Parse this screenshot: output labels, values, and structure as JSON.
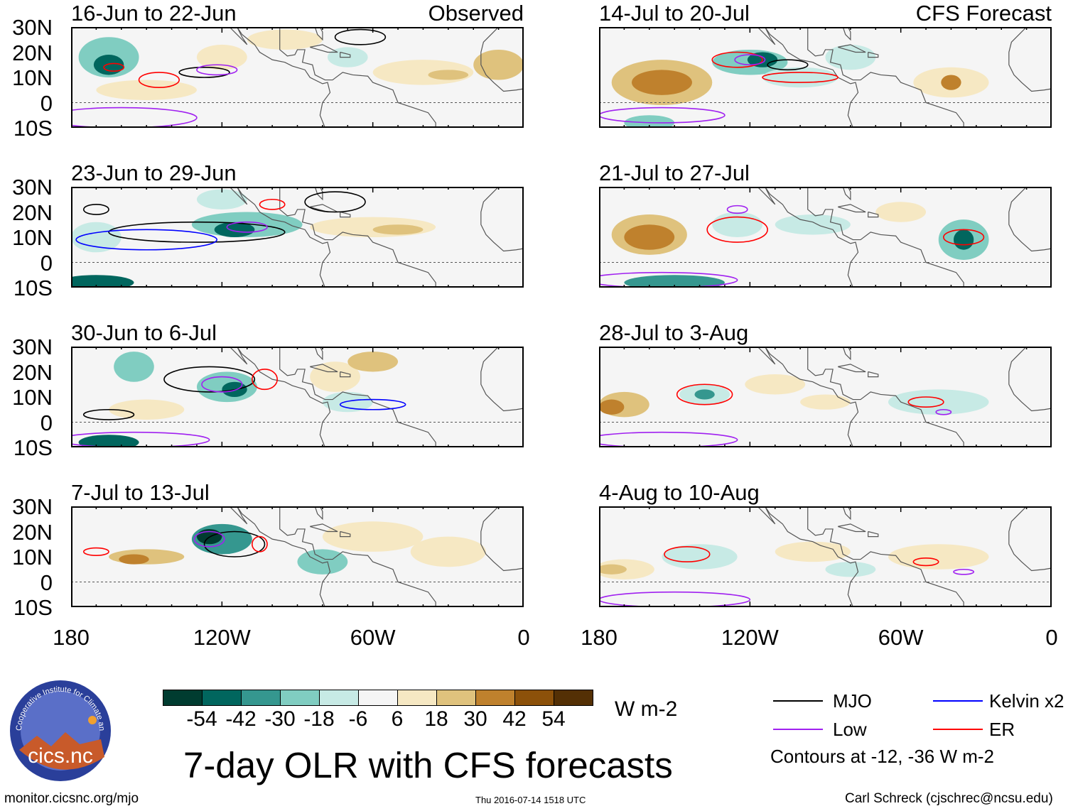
{
  "panels_left": [
    {
      "title": "16-Jun to 22-Jun",
      "tag": "Observed"
    },
    {
      "title": "23-Jun to 29-Jun"
    },
    {
      "title": "30-Jun to 6-Jul"
    },
    {
      "title": "7-Jul to 13-Jul"
    }
  ],
  "panels_right": [
    {
      "title": "14-Jul to 20-Jul",
      "tag": "CFS Forecast"
    },
    {
      "title": "21-Jul to 27-Jul"
    },
    {
      "title": "28-Jul to 3-Aug"
    },
    {
      "title": "4-Aug to 10-Aug"
    }
  ],
  "lat_labels": [
    "30N",
    "20N",
    "10N",
    "0",
    "10S"
  ],
  "lon_labels": [
    "180",
    "120W",
    "60W",
    "0"
  ],
  "colorbar": {
    "colors": [
      "#003c30",
      "#01665e",
      "#35978f",
      "#80cdc1",
      "#c7eae5",
      "#f5f5f5",
      "#f6e8c3",
      "#dfc27d",
      "#bf812d",
      "#8c510a",
      "#543005"
    ],
    "labels": [
      "-54",
      "-42",
      "-30",
      "-18",
      "-6",
      "6",
      "18",
      "30",
      "42",
      "54"
    ],
    "units": "W m-2"
  },
  "legend": {
    "items": [
      {
        "label": "MJO",
        "color": "#000000"
      },
      {
        "label": "Kelvin x2",
        "color": "#0000ff"
      },
      {
        "label": "Low",
        "color": "#a020f0"
      },
      {
        "label": "ER",
        "color": "#ff0000"
      }
    ],
    "note": "Contours at -12, -36 W m-2"
  },
  "title": "7-day OLR with CFS forecasts",
  "logo": {
    "text": "cics.nc",
    "arc": "Cooperative Institute for Climate and Satellites"
  },
  "footer": {
    "left": "monitor.cicsnc.org/mjo",
    "center": "Thu 2016-07-14 1518 UTC",
    "right": "Carl Schreck (cjschrec@ncsu.edu)"
  }
}
